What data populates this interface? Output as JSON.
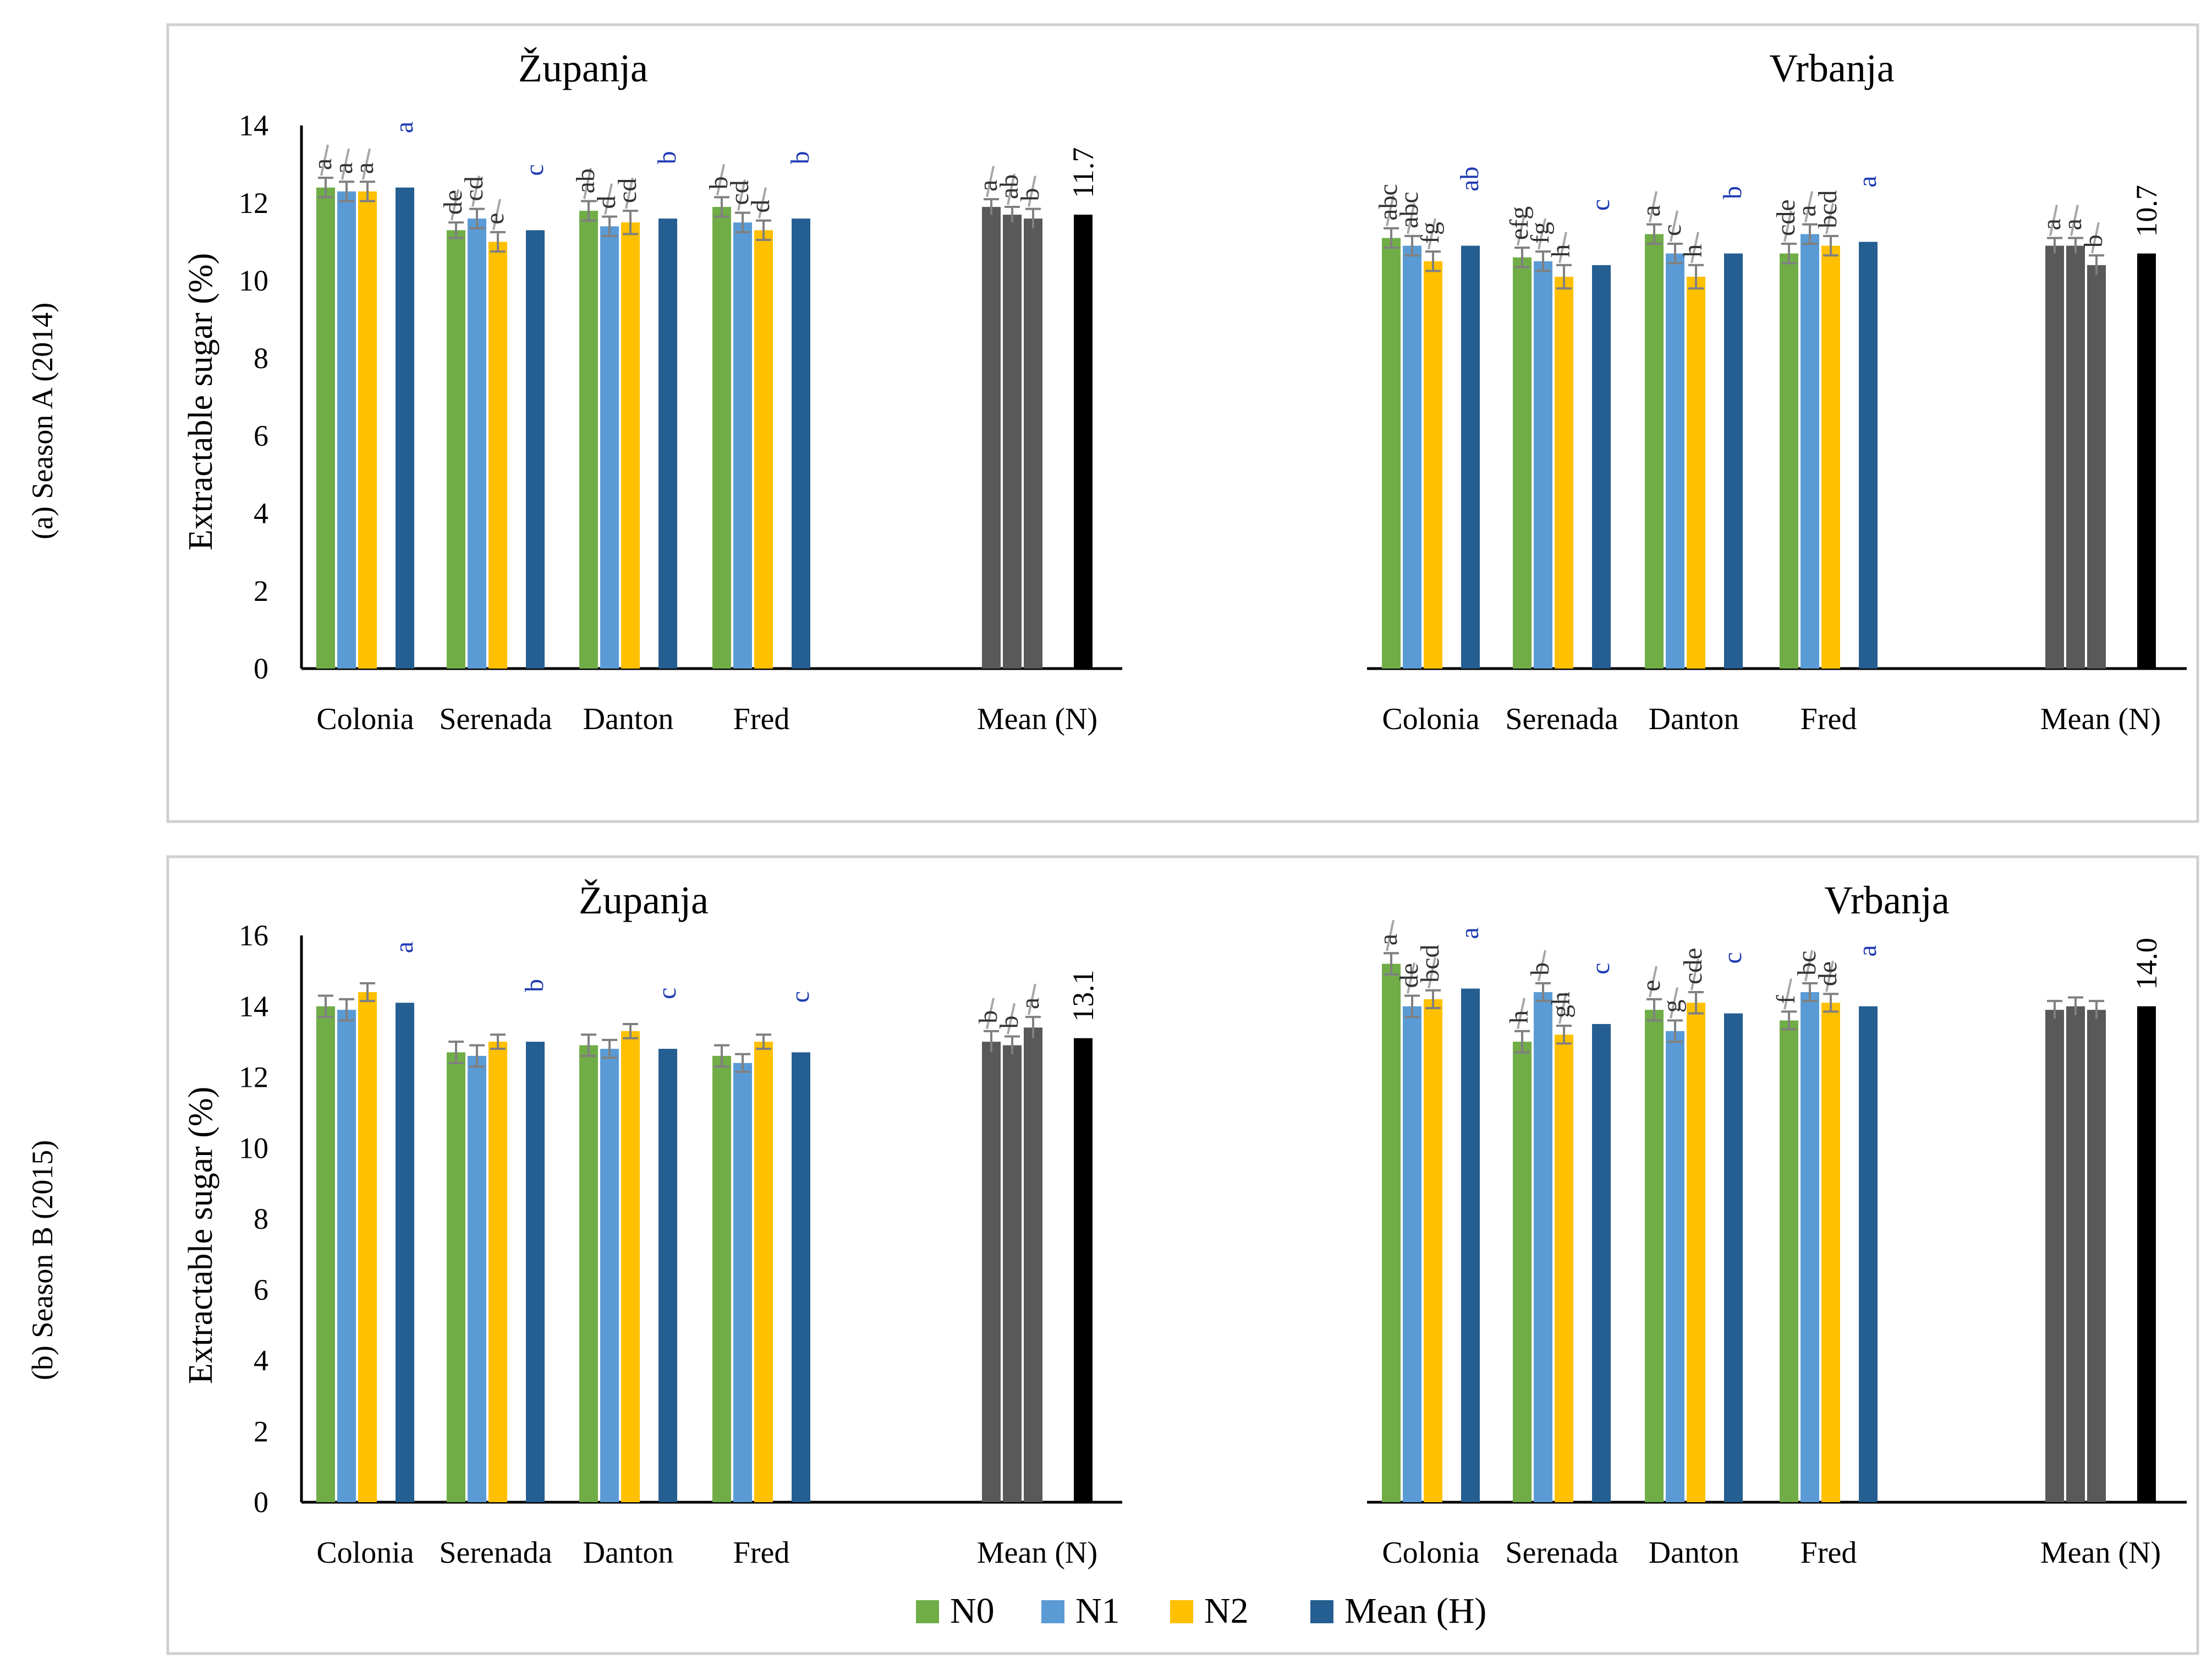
{
  "colors": {
    "N0": "#70ad47",
    "N1": "#5b9bd5",
    "N2": "#ffc000",
    "MeanH": "#255e91",
    "MeanN": "#595959",
    "MeanNtotal": "#000000",
    "letter_black": "#333333",
    "letter_blue": "#1f3bb3",
    "error": "#808080",
    "frame": "#d0d0d0",
    "axis": "#000000"
  },
  "legend": [
    {
      "key": "N0",
      "label": "N0"
    },
    {
      "key": "N1",
      "label": "N1"
    },
    {
      "key": "N2",
      "label": "N2"
    },
    {
      "key": "MeanH",
      "label": "Mean (H)"
    }
  ],
  "chart_data": [
    {
      "type": "bar",
      "panel_label": "(a) Season A (2014)",
      "ylabel": "Extractable sugar (%)",
      "ylim": [
        0,
        14
      ],
      "yticks": [
        "0",
        "2",
        "4",
        "6",
        "8",
        "10",
        "12",
        "14"
      ],
      "sites": [
        {
          "title": "Županja",
          "groups": [
            {
              "category": "Colonia",
              "N0": 12.4,
              "N1": 12.3,
              "N2": 12.3,
              "MeanH": 12.4,
              "err": [
                0.25,
                0.25,
                0.25
              ],
              "letters": [
                "a",
                "a",
                "a"
              ],
              "hLetter": "a"
            },
            {
              "category": "Serenada",
              "N0": 11.3,
              "N1": 11.6,
              "N2": 11.0,
              "MeanH": 11.3,
              "err": [
                0.2,
                0.25,
                0.25
              ],
              "letters": [
                "de",
                "cd",
                "e"
              ],
              "hLetter": "c"
            },
            {
              "category": "Danton",
              "N0": 11.8,
              "N1": 11.4,
              "N2": 11.5,
              "MeanH": 11.6,
              "err": [
                0.25,
                0.25,
                0.3
              ],
              "letters": [
                "ab",
                "d",
                "cd"
              ],
              "hLetter": "b"
            },
            {
              "category": "Fred",
              "N0": 11.9,
              "N1": 11.5,
              "N2": 11.3,
              "MeanH": 11.6,
              "err": [
                0.25,
                0.25,
                0.25
              ],
              "letters": [
                "b",
                "cd",
                "d"
              ],
              "hLetter": "b"
            }
          ],
          "meanN": {
            "category": "Mean (N)",
            "values": [
              11.9,
              11.7,
              11.6
            ],
            "err": [
              0.2,
              0.2,
              0.25
            ],
            "letters": [
              "a",
              "ab",
              "b"
            ],
            "total": 11.7,
            "total_label": "11.7"
          }
        },
        {
          "title": "Vrbanja",
          "groups": [
            {
              "category": "Colonia",
              "N0": 11.1,
              "N1": 10.9,
              "N2": 10.5,
              "MeanH": 10.9,
              "err": [
                0.25,
                0.25,
                0.25
              ],
              "letters": [
                "abc",
                "abc",
                "fg"
              ],
              "hLetter": "ab"
            },
            {
              "category": "Serenada",
              "N0": 10.6,
              "N1": 10.5,
              "N2": 10.1,
              "MeanH": 10.4,
              "err": [
                0.25,
                0.25,
                0.3
              ],
              "letters": [
                "efg",
                "fg",
                "h"
              ],
              "hLetter": "c"
            },
            {
              "category": "Danton",
              "N0": 11.2,
              "N1": 10.7,
              "N2": 10.1,
              "MeanH": 10.7,
              "err": [
                0.25,
                0.25,
                0.3
              ],
              "letters": [
                "a",
                "c",
                "h"
              ],
              "hLetter": "b"
            },
            {
              "category": "Fred",
              "N0": 10.7,
              "N1": 11.2,
              "N2": 10.9,
              "MeanH": 11.0,
              "err": [
                0.25,
                0.25,
                0.25
              ],
              "letters": [
                "cde",
                "a",
                "bcd"
              ],
              "hLetter": "a"
            }
          ],
          "meanN": {
            "category": "Mean (N)",
            "values": [
              10.9,
              10.9,
              10.4
            ],
            "err": [
              0.2,
              0.2,
              0.25
            ],
            "letters": [
              "a",
              "a",
              "b"
            ],
            "total": 10.7,
            "total_label": "10.7"
          }
        }
      ]
    },
    {
      "type": "bar",
      "panel_label": "(b) Season B (2015)",
      "ylabel": "Extractable sugar (%)",
      "ylim": [
        0,
        16
      ],
      "yticks": [
        "0",
        "2",
        "4",
        "6",
        "8",
        "10",
        "12",
        "14",
        "16"
      ],
      "sites": [
        {
          "title": "Županja",
          "groups": [
            {
              "category": "Colonia",
              "N0": 14.0,
              "N1": 13.9,
              "N2": 14.4,
              "MeanH": 14.1,
              "err": [
                0.3,
                0.3,
                0.25
              ],
              "letters": [],
              "hLetter": "a"
            },
            {
              "category": "Serenada",
              "N0": 12.7,
              "N1": 12.6,
              "N2": 13.0,
              "MeanH": 13.0,
              "err": [
                0.3,
                0.3,
                0.2
              ],
              "letters": [],
              "hLetter": "b"
            },
            {
              "category": "Danton",
              "N0": 12.9,
              "N1": 12.8,
              "N2": 13.3,
              "MeanH": 12.8,
              "err": [
                0.3,
                0.25,
                0.2
              ],
              "letters": [],
              "hLetter": "c"
            },
            {
              "category": "Fred",
              "N0": 12.6,
              "N1": 12.4,
              "N2": 13.0,
              "MeanH": 12.7,
              "err": [
                0.3,
                0.25,
                0.2
              ],
              "letters": [],
              "hLetter": "c"
            }
          ],
          "meanN": {
            "category": "Mean (N)",
            "values": [
              13.0,
              12.9,
              13.4
            ],
            "err": [
              0.3,
              0.25,
              0.3
            ],
            "letters": [
              "b",
              "b",
              "a"
            ],
            "total": 13.1,
            "total_label": "13.1"
          }
        },
        {
          "title": "Vrbanja",
          "groups": [
            {
              "category": "Colonia",
              "N0": 15.2,
              "N1": 14.0,
              "N2": 14.2,
              "MeanH": 14.5,
              "err": [
                0.3,
                0.3,
                0.25
              ],
              "letters": [
                "a",
                "de",
                "bcd"
              ],
              "hLetter": "a"
            },
            {
              "category": "Serenada",
              "N0": 13.0,
              "N1": 14.4,
              "N2": 13.2,
              "MeanH": 13.5,
              "err": [
                0.3,
                0.25,
                0.25
              ],
              "letters": [
                "h",
                "b",
                "gh"
              ],
              "hLetter": "c"
            },
            {
              "category": "Danton",
              "N0": 13.9,
              "N1": 13.3,
              "N2": 14.1,
              "MeanH": 13.8,
              "err": [
                0.3,
                0.3,
                0.3
              ],
              "letters": [
                "e",
                "g",
                "cde"
              ],
              "hLetter": "c"
            },
            {
              "category": "Fred",
              "N0": 13.6,
              "N1": 14.4,
              "N2": 14.1,
              "MeanH": 14.0,
              "err": [
                0.25,
                0.25,
                0.25
              ],
              "letters": [
                "f",
                "bc",
                "de"
              ],
              "hLetter": "a"
            }
          ],
          "meanN": {
            "category": "Mean (N)",
            "values": [
              13.9,
              14.0,
              13.9
            ],
            "err": [
              0.25,
              0.25,
              0.25
            ],
            "letters": [],
            "total": 14.0,
            "total_label": "14.0"
          }
        }
      ]
    }
  ]
}
